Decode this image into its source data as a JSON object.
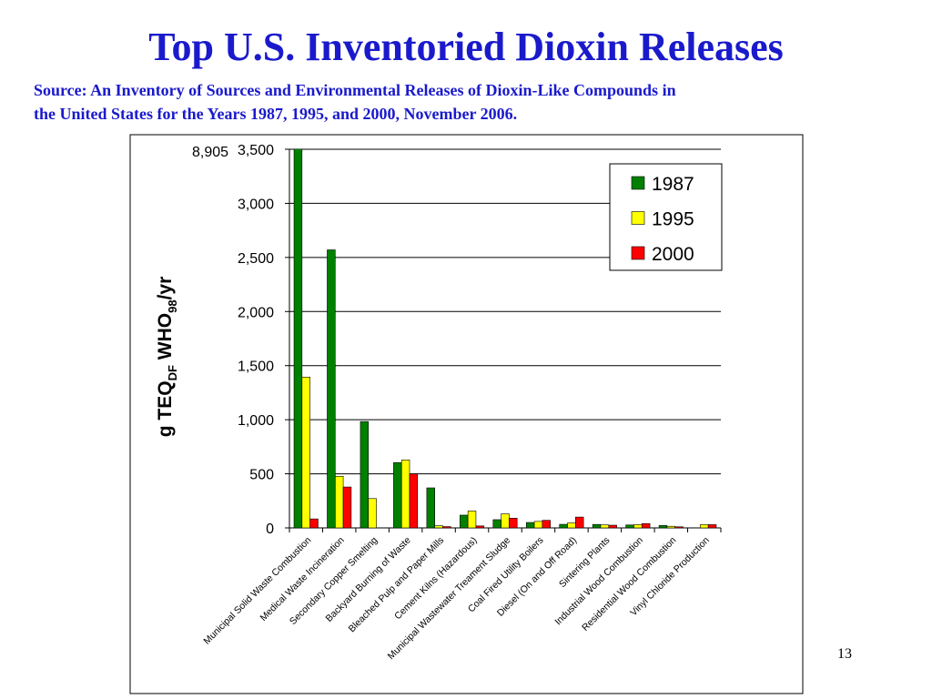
{
  "chart_data": {
    "type": "bar",
    "title": "Top U.S. Inventoried Dioxin Releases",
    "subtitle": [
      "Source: An Inventory of Sources and Environmental Releases of Dioxin-Like Compounds in",
      "the United States for the Years 1987, 1995, and 2000, November 2006."
    ],
    "ylabel": [
      "g TEQ",
      "DF",
      " WHO",
      "98",
      "/yr"
    ],
    "categories": [
      "Municipal Solid Waste Combustion",
      "Medical Waste Incineration",
      "Secondary Copper Smelting",
      "Backyard Burning of Waste",
      "Bleached Pulp and Paper Mills",
      "Cement Kilns (Hazardous)",
      "Municipal Wastewater Treament Sludge",
      "Coal Fired Utility Boilers",
      "Diesel (On and Off Road)",
      "Sintering Plants",
      "Industrial Wood Combustion",
      "Residential Wood Combustion",
      "Vinyl Chloride Production"
    ],
    "series": [
      {
        "name": "1987",
        "color": "#008000",
        "values": [
          8905,
          2570,
          983,
          604,
          370,
          118,
          76,
          50,
          33,
          32,
          27,
          22,
          null
        ],
        "value_labels": [
          "8,905",
          null,
          null,
          null,
          null,
          null,
          null,
          null,
          null,
          null,
          null,
          null,
          null
        ]
      },
      {
        "name": "1995",
        "color": "#ffff00",
        "values": [
          1394,
          477,
          271,
          628,
          20,
          156,
          130,
          60,
          46,
          28,
          30,
          15,
          30
        ]
      },
      {
        "name": "2000",
        "color": "#ff0000",
        "values": [
          83,
          378,
          null,
          499,
          12,
          18,
          90,
          70,
          100,
          25,
          40,
          10,
          30
        ]
      }
    ],
    "ylim": [
      0,
      3500
    ],
    "yticks": [
      0,
      {
        "value": 500,
        "label": "500"
      },
      {
        "value": 1000,
        "label": "1,000"
      },
      {
        "value": 1500,
        "label": "1,500"
      },
      {
        "value": 2000,
        "label": "2,000"
      },
      {
        "value": 2500,
        "label": "2,500"
      },
      {
        "value": 3000,
        "label": "3,000"
      },
      {
        "value": 3500,
        "label": "3,500"
      }
    ],
    "grid": true,
    "legend": "upper right",
    "page_number": "13"
  }
}
